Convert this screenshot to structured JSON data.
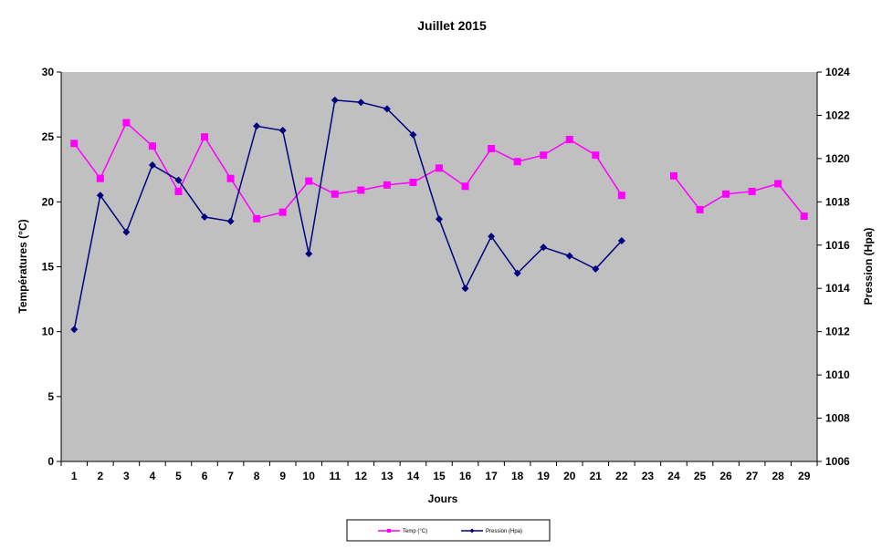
{
  "chart_data": {
    "type": "line",
    "title": "Juillet 2015",
    "xlabel": "Jours",
    "ylabel": "Températures (°C)",
    "y2label": "Pression (Hpa)",
    "categories": [
      "1",
      "2",
      "3",
      "4",
      "5",
      "6",
      "7",
      "8",
      "9",
      "10",
      "11",
      "12",
      "13",
      "14",
      "15",
      "16",
      "17",
      "18",
      "19",
      "20",
      "21",
      "22",
      "23",
      "24",
      "25",
      "26",
      "27",
      "28",
      "29"
    ],
    "ylim": [
      0,
      30
    ],
    "yticks": [
      "0",
      "5",
      "10",
      "15",
      "20",
      "25",
      "30"
    ],
    "y2lim": [
      1006,
      1024
    ],
    "y2ticks": [
      "1006",
      "1008",
      "1010",
      "1012",
      "1014",
      "1016",
      "1018",
      "1020",
      "1022",
      "1024"
    ],
    "grid": false,
    "legend_position": "bottom",
    "colors": {
      "plot_background": "#c0c0c0",
      "temp": "#ff00ff",
      "pression": "#000080"
    },
    "series": [
      {
        "name": "Temp (°C)",
        "axis": "left",
        "marker": "square",
        "values": [
          24.5,
          21.8,
          26.1,
          24.3,
          20.8,
          25.0,
          21.8,
          18.7,
          19.2,
          21.6,
          20.6,
          20.9,
          21.3,
          21.5,
          22.6,
          21.2,
          24.1,
          23.1,
          23.6,
          24.8,
          23.6,
          20.5,
          null,
          22.0,
          19.4,
          20.6,
          20.8,
          21.4,
          18.9
        ]
      },
      {
        "name": "Pression (Hpa)",
        "axis": "right",
        "marker": "diamond",
        "values": [
          1012.1,
          1018.3,
          1016.6,
          1019.7,
          1019.0,
          1017.3,
          1017.1,
          1021.5,
          1021.3,
          1015.6,
          1022.7,
          1022.6,
          1022.3,
          1021.1,
          1017.2,
          1014.0,
          1016.4,
          1014.7,
          1015.9,
          1015.5,
          1014.9,
          1016.2,
          null,
          null,
          null,
          null,
          null,
          null,
          null
        ]
      }
    ]
  }
}
